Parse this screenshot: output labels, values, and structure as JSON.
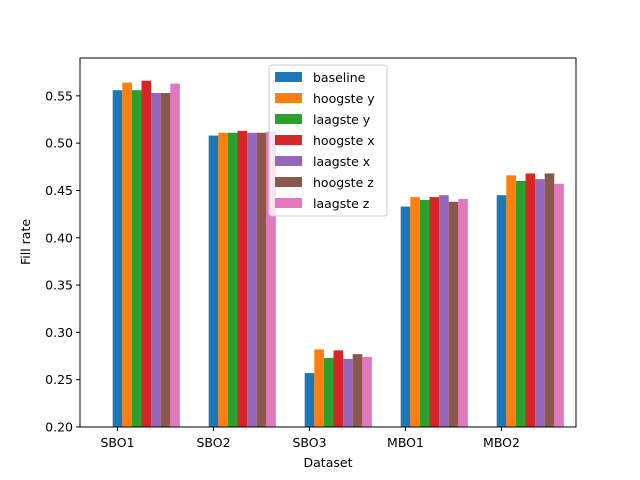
{
  "chart_data": {
    "type": "bar",
    "xlabel": "Dataset",
    "ylabel": "Fill rate",
    "ylim": [
      0.2,
      0.59
    ],
    "yticks": [
      "0.20",
      "0.25",
      "0.30",
      "0.35",
      "0.40",
      "0.45",
      "0.50",
      "0.55"
    ],
    "categories": [
      "SBO1",
      "SBO2",
      "SBO3",
      "MBO1",
      "MBO2"
    ],
    "legend_position": "upper-center",
    "grid": false,
    "series": [
      {
        "name": "baseline",
        "color": "#1f77b4",
        "values": [
          0.556,
          0.508,
          0.257,
          0.433,
          0.445
        ]
      },
      {
        "name": "hoogste y",
        "color": "#ff7f0e",
        "values": [
          0.564,
          0.511,
          0.282,
          0.443,
          0.466
        ]
      },
      {
        "name": "laagste y",
        "color": "#2ca02c",
        "values": [
          0.556,
          0.511,
          0.273,
          0.44,
          0.46
        ]
      },
      {
        "name": "hoogste x",
        "color": "#d62728",
        "values": [
          0.566,
          0.513,
          0.281,
          0.443,
          0.468
        ]
      },
      {
        "name": "laagste x",
        "color": "#9467bd",
        "values": [
          0.553,
          0.511,
          0.272,
          0.445,
          0.462
        ]
      },
      {
        "name": "hoogste z",
        "color": "#8c564b",
        "values": [
          0.553,
          0.511,
          0.277,
          0.438,
          0.468
        ]
      },
      {
        "name": "laagste z",
        "color": "#e377c2",
        "values": [
          0.563,
          0.512,
          0.274,
          0.441,
          0.457
        ]
      }
    ]
  }
}
